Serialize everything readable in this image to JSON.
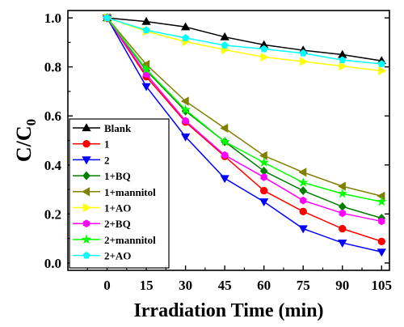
{
  "chart_data": {
    "type": "line",
    "title": "",
    "xlabel": "Irradiation Time (min)",
    "ylabel": "C/C",
    "ylabel_subscript": "0",
    "x": [
      0,
      15,
      30,
      45,
      60,
      75,
      90,
      105
    ],
    "x_tick_labels": [
      "0",
      "15",
      "30",
      "45",
      "60",
      "75",
      "90",
      "105"
    ],
    "xlim": [
      -15,
      108
    ],
    "ylim": [
      -0.03,
      1.03
    ],
    "y_ticks": [
      0.0,
      0.2,
      0.4,
      0.6,
      0.8,
      1.0
    ],
    "y_tick_labels": [
      "0.0",
      "0.2",
      "0.4",
      "0.6",
      "0.8",
      "1.0"
    ],
    "grid": false,
    "legend_position": "bottom-left",
    "series": [
      {
        "name": "Blank",
        "color": "#000000",
        "marker": "triangle-up",
        "values": [
          1.0,
          0.985,
          0.963,
          0.922,
          0.89,
          0.868,
          0.85,
          0.825
        ]
      },
      {
        "name": "1",
        "color": "#ff0000",
        "marker": "circle",
        "values": [
          1.0,
          0.76,
          0.575,
          0.435,
          0.295,
          0.21,
          0.14,
          0.088
        ]
      },
      {
        "name": "2",
        "color": "#0000ff",
        "marker": "triangle-down",
        "values": [
          1.0,
          0.72,
          0.515,
          0.345,
          0.25,
          0.14,
          0.082,
          0.045
        ]
      },
      {
        "name": "1+BQ",
        "color": "#007f00",
        "marker": "diamond",
        "values": [
          1.0,
          0.785,
          0.62,
          0.495,
          0.375,
          0.295,
          0.23,
          0.183
        ]
      },
      {
        "name": "1+mannitol",
        "color": "#808000",
        "marker": "triangle-left",
        "values": [
          1.0,
          0.81,
          0.66,
          0.55,
          0.438,
          0.37,
          0.313,
          0.273
        ]
      },
      {
        "name": "1+AO",
        "color": "#ffff00",
        "marker": "triangle-right",
        "values": [
          1.0,
          0.945,
          0.903,
          0.87,
          0.84,
          0.822,
          0.803,
          0.784
        ]
      },
      {
        "name": "2+BQ",
        "color": "#ff00ff",
        "marker": "hexagon",
        "values": [
          1.0,
          0.77,
          0.58,
          0.44,
          0.35,
          0.255,
          0.203,
          0.17
        ]
      },
      {
        "name": "2+mannitol",
        "color": "#00ff00",
        "marker": "star",
        "values": [
          1.0,
          0.79,
          0.625,
          0.495,
          0.41,
          0.328,
          0.283,
          0.25
        ]
      },
      {
        "name": "2+AO",
        "color": "#00ffff",
        "marker": "pentagon",
        "values": [
          1.0,
          0.95,
          0.918,
          0.888,
          0.873,
          0.856,
          0.828,
          0.812
        ]
      }
    ]
  }
}
